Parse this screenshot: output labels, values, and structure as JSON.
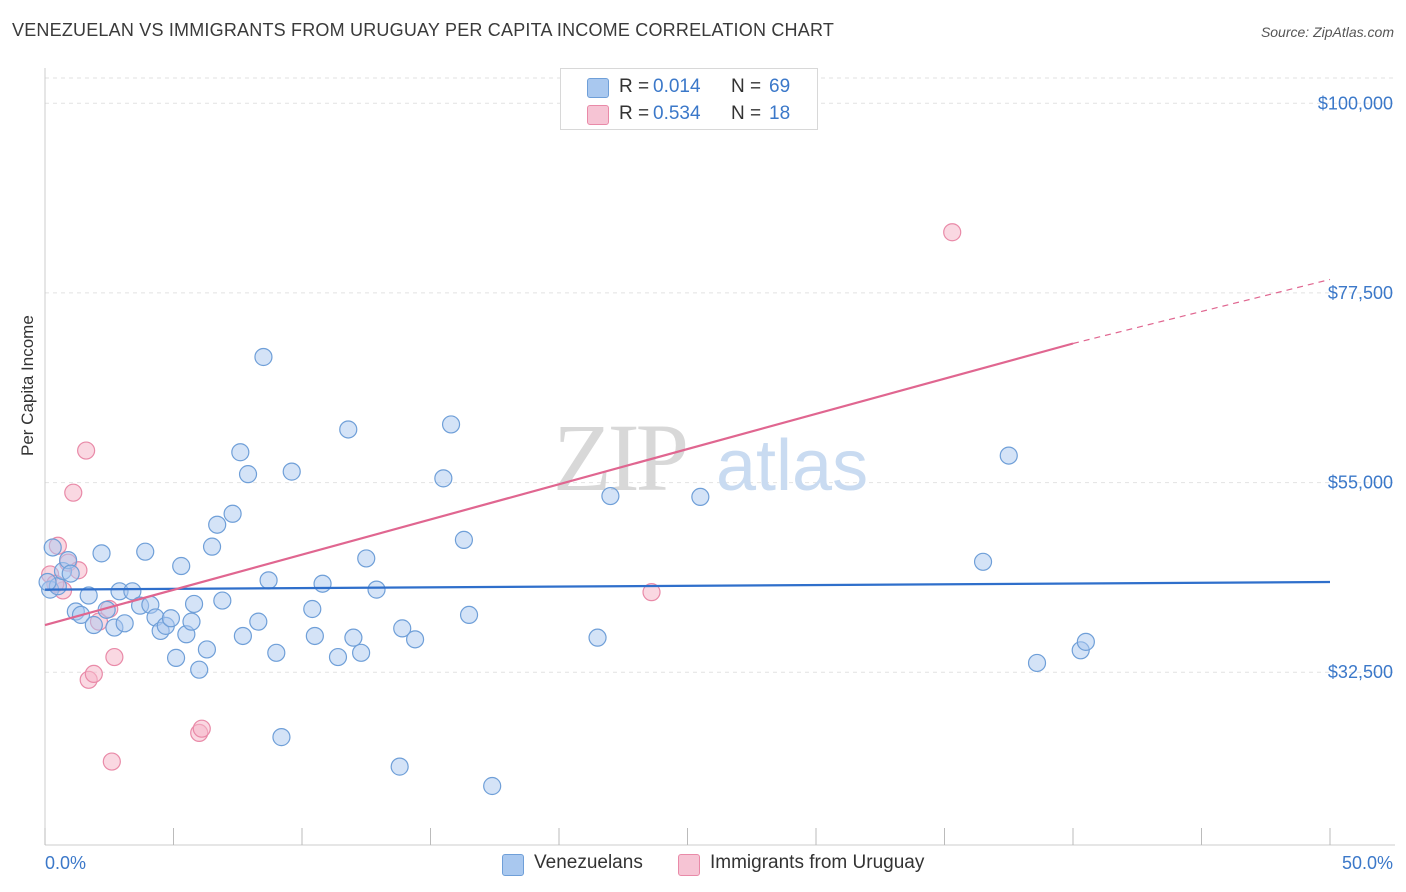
{
  "header": {
    "title": "VENEZUELAN VS IMMIGRANTS FROM URUGUAY PER CAPITA INCOME CORRELATION CHART",
    "source": "Source: ZipAtlas.com"
  },
  "watermark": {
    "zip": "ZIP",
    "atlas": "atlas"
  },
  "legend_top": [
    {
      "r_label": "R =",
      "r_value": "0.014",
      "n_label": "N =",
      "n_value": "69"
    },
    {
      "r_label": "R =",
      "r_value": "0.534",
      "n_label": "N =",
      "n_value": "18"
    }
  ],
  "legend_bottom": [
    {
      "label": "Venezuelans"
    },
    {
      "label": "Immigrants from Uruguay"
    }
  ],
  "colors": {
    "blue_fill": "#a9c8ef",
    "blue_stroke": "#6f9fd8",
    "blue_line": "#2f6fcb",
    "pink_fill": "#f6b8cb",
    "pink_stroke": "#e98aa8",
    "pink_line": "#e06690",
    "axis_text": "#3b78c9",
    "grid": "#e2e2e2"
  },
  "chart_data": {
    "type": "scatter",
    "title": "VENEZUELAN VS IMMIGRANTS FROM URUGUAY PER CAPITA INCOME CORRELATION CHART",
    "xlabel": "",
    "ylabel": "Per Capita Income",
    "xlim": [
      0,
      50
    ],
    "ylim": [
      12000,
      103000
    ],
    "x_tick_labels": [
      "0.0%",
      "50.0%"
    ],
    "y_ticks": [
      32500,
      55000,
      77500,
      100000
    ],
    "y_tick_labels": [
      "$32,500",
      "$55,000",
      "$77,500",
      "$100,000"
    ],
    "grid": true,
    "legend_position": "top-center",
    "series": [
      {
        "name": "Venezuelans",
        "r": 0.014,
        "n": 69,
        "trend": {
          "x": [
            0,
            50
          ],
          "y": [
            42300,
            43200
          ]
        },
        "points": [
          [
            0.2,
            42300
          ],
          [
            0.3,
            47300
          ],
          [
            0.5,
            42700
          ],
          [
            0.7,
            44500
          ],
          [
            0.9,
            45800
          ],
          [
            1.0,
            44200
          ],
          [
            1.2,
            39700
          ],
          [
            1.4,
            39300
          ],
          [
            1.7,
            41600
          ],
          [
            1.9,
            38100
          ],
          [
            2.2,
            46600
          ],
          [
            2.4,
            39900
          ],
          [
            2.7,
            37800
          ],
          [
            2.9,
            42100
          ],
          [
            3.1,
            38300
          ],
          [
            3.4,
            42100
          ],
          [
            3.7,
            40400
          ],
          [
            3.9,
            46800
          ],
          [
            4.1,
            40500
          ],
          [
            4.3,
            39000
          ],
          [
            4.5,
            37400
          ],
          [
            4.7,
            38000
          ],
          [
            4.9,
            38900
          ],
          [
            5.1,
            34200
          ],
          [
            5.3,
            45100
          ],
          [
            5.5,
            37000
          ],
          [
            5.7,
            38500
          ],
          [
            5.8,
            40600
          ],
          [
            6.0,
            32800
          ],
          [
            6.3,
            35200
          ],
          [
            6.5,
            47400
          ],
          [
            6.7,
            50000
          ],
          [
            6.9,
            41000
          ],
          [
            7.3,
            51300
          ],
          [
            7.6,
            58600
          ],
          [
            7.7,
            36800
          ],
          [
            7.9,
            56000
          ],
          [
            8.3,
            38500
          ],
          [
            8.5,
            69900
          ],
          [
            8.7,
            43400
          ],
          [
            9.0,
            34800
          ],
          [
            9.2,
            24800
          ],
          [
            9.6,
            56300
          ],
          [
            10.4,
            40000
          ],
          [
            10.5,
            36800
          ],
          [
            10.8,
            43000
          ],
          [
            11.4,
            34300
          ],
          [
            11.8,
            61300
          ],
          [
            12.0,
            36600
          ],
          [
            12.3,
            34800
          ],
          [
            12.5,
            46000
          ],
          [
            12.9,
            42300
          ],
          [
            13.8,
            21300
          ],
          [
            13.9,
            37700
          ],
          [
            14.4,
            36400
          ],
          [
            15.5,
            55500
          ],
          [
            15.8,
            61900
          ],
          [
            16.3,
            48200
          ],
          [
            16.5,
            39300
          ],
          [
            17.4,
            19000
          ],
          [
            21.5,
            36600
          ],
          [
            22.0,
            53400
          ],
          [
            25.5,
            53300
          ],
          [
            36.5,
            45600
          ],
          [
            37.5,
            58200
          ],
          [
            38.6,
            33600
          ],
          [
            40.3,
            35100
          ],
          [
            40.5,
            36100
          ],
          [
            0.1,
            43200
          ]
        ]
      },
      {
        "name": "Immigrants from Uruguay",
        "r": 0.534,
        "n": 18,
        "trend": {
          "x": [
            0,
            40
          ],
          "y": [
            38100,
            71500
          ]
        },
        "trend_dashed": {
          "x": [
            40,
            50
          ],
          "y": [
            71500,
            79100
          ]
        },
        "points": [
          [
            0.2,
            44100
          ],
          [
            0.5,
            47500
          ],
          [
            0.7,
            42200
          ],
          [
            0.9,
            45500
          ],
          [
            1.1,
            53800
          ],
          [
            1.3,
            44600
          ],
          [
            1.6,
            58800
          ],
          [
            1.7,
            31600
          ],
          [
            1.9,
            32300
          ],
          [
            2.1,
            38500
          ],
          [
            2.5,
            40000
          ],
          [
            2.6,
            21900
          ],
          [
            2.7,
            34300
          ],
          [
            6.0,
            25300
          ],
          [
            6.1,
            25800
          ],
          [
            23.6,
            42000
          ],
          [
            35.3,
            84700
          ],
          [
            0.4,
            43000
          ]
        ]
      }
    ]
  }
}
